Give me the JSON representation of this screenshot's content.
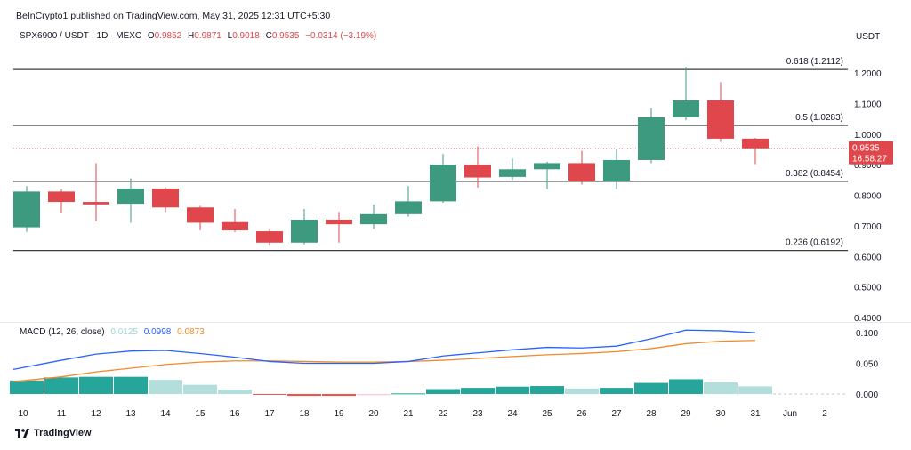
{
  "header": {
    "published": "BeInCrypto1 published on TradingView.com, May 31, 2025 12:31 UTC+5:30",
    "symbol": "SPX6900 / USDT · 1D · MEXC",
    "o_label": "O",
    "o_value": "0.9852",
    "h_label": "H",
    "h_value": "0.9871",
    "l_label": "L",
    "l_value": "0.9018",
    "c_label": "C",
    "c_value": "0.9535",
    "change": "−0.0314 (−3.19%)",
    "unit": "USDT"
  },
  "price_badge": {
    "price": "0.9535",
    "countdown": "16:58:27"
  },
  "macd": {
    "label": "MACD (12, 26, close)",
    "hist_value": "0.0125",
    "macd_value": "0.0998",
    "signal_value": "0.0873"
  },
  "brand": {
    "name": "TradingView"
  },
  "colors": {
    "up": "#3e9a7e",
    "down": "#e0474c",
    "macd_line": "#2962ff",
    "signal_line": "#f08a2c",
    "hist_up_strong": "#26a69a",
    "hist_up_weak": "#b2dfdb",
    "hist_down_strong": "#ef5350",
    "hist_down_weak": "#ffcdd2"
  },
  "chart_data": {
    "type": "candlestick",
    "x_ticks": [
      "10",
      "11",
      "12",
      "13",
      "14",
      "15",
      "16",
      "17",
      "18",
      "19",
      "20",
      "21",
      "22",
      "23",
      "24",
      "25",
      "26",
      "27",
      "28",
      "29",
      "30",
      "31",
      "Jun",
      "2"
    ],
    "y_ticks": [
      "0.4000",
      "0.5000",
      "0.6000",
      "0.7000",
      "0.8000",
      "0.9000",
      "1.0000",
      "1.1000",
      "1.2000"
    ],
    "ylim": [
      0.38,
      1.25
    ],
    "fib_levels": [
      {
        "label": "0.618 (1.2112)",
        "value": 1.2112
      },
      {
        "label": "0.5 (1.0283)",
        "value": 1.0283
      },
      {
        "label": "0.382 (0.8454)",
        "value": 0.8454
      },
      {
        "label": "0.236 (0.6192)",
        "value": 0.6192
      }
    ],
    "current_price": 0.9535,
    "candles": [
      {
        "d": "10",
        "o": 0.695,
        "h": 0.83,
        "l": 0.68,
        "c": 0.812
      },
      {
        "d": "11",
        "o": 0.812,
        "h": 0.82,
        "l": 0.74,
        "c": 0.778
      },
      {
        "d": "12",
        "o": 0.778,
        "h": 0.905,
        "l": 0.715,
        "c": 0.77
      },
      {
        "d": "13",
        "o": 0.772,
        "h": 0.855,
        "l": 0.71,
        "c": 0.822
      },
      {
        "d": "14",
        "o": 0.822,
        "h": 0.825,
        "l": 0.745,
        "c": 0.76
      },
      {
        "d": "15",
        "o": 0.76,
        "h": 0.765,
        "l": 0.685,
        "c": 0.71
      },
      {
        "d": "16",
        "o": 0.712,
        "h": 0.755,
        "l": 0.68,
        "c": 0.685
      },
      {
        "d": "17",
        "o": 0.682,
        "h": 0.69,
        "l": 0.635,
        "c": 0.645
      },
      {
        "d": "18",
        "o": 0.645,
        "h": 0.755,
        "l": 0.64,
        "c": 0.72
      },
      {
        "d": "19",
        "o": 0.72,
        "h": 0.745,
        "l": 0.645,
        "c": 0.705
      },
      {
        "d": "20",
        "o": 0.705,
        "h": 0.77,
        "l": 0.69,
        "c": 0.738
      },
      {
        "d": "21",
        "o": 0.738,
        "h": 0.83,
        "l": 0.73,
        "c": 0.78
      },
      {
        "d": "22",
        "o": 0.78,
        "h": 0.935,
        "l": 0.775,
        "c": 0.9
      },
      {
        "d": "23",
        "o": 0.9,
        "h": 0.96,
        "l": 0.825,
        "c": 0.858
      },
      {
        "d": "24",
        "o": 0.86,
        "h": 0.92,
        "l": 0.85,
        "c": 0.885
      },
      {
        "d": "25",
        "o": 0.885,
        "h": 0.91,
        "l": 0.82,
        "c": 0.905
      },
      {
        "d": "26",
        "o": 0.905,
        "h": 0.945,
        "l": 0.835,
        "c": 0.845
      },
      {
        "d": "27",
        "o": 0.845,
        "h": 0.95,
        "l": 0.82,
        "c": 0.915
      },
      {
        "d": "28",
        "o": 0.915,
        "h": 1.085,
        "l": 0.905,
        "c": 1.055
      },
      {
        "d": "29",
        "o": 1.055,
        "h": 1.22,
        "l": 1.045,
        "c": 1.11
      },
      {
        "d": "30",
        "o": 1.11,
        "h": 1.17,
        "l": 0.975,
        "c": 0.985
      },
      {
        "d": "31",
        "o": 0.9852,
        "h": 0.9871,
        "l": 0.9018,
        "c": 0.9535
      }
    ],
    "macd_panel": {
      "y_ticks": [
        "0.000",
        "0.050",
        "0.100"
      ],
      "ylim": [
        -0.01,
        0.11
      ],
      "macd": [
        0.04,
        0.055,
        0.065,
        0.07,
        0.071,
        0.066,
        0.06,
        0.053,
        0.05,
        0.05,
        0.05,
        0.053,
        0.062,
        0.067,
        0.072,
        0.076,
        0.075,
        0.078,
        0.09,
        0.104,
        0.103,
        0.0998
      ],
      "signal": [
        0.02,
        0.028,
        0.036,
        0.042,
        0.048,
        0.052,
        0.054,
        0.054,
        0.053,
        0.052,
        0.052,
        0.053,
        0.055,
        0.058,
        0.061,
        0.064,
        0.066,
        0.069,
        0.074,
        0.082,
        0.086,
        0.0873
      ],
      "histogram": [
        0.022,
        0.027,
        0.028,
        0.028,
        0.023,
        0.015,
        0.007,
        -0.001,
        -0.003,
        -0.003,
        -0.002,
        0.001,
        0.008,
        0.01,
        0.012,
        0.013,
        0.009,
        0.01,
        0.018,
        0.024,
        0.019,
        0.0125
      ]
    }
  }
}
